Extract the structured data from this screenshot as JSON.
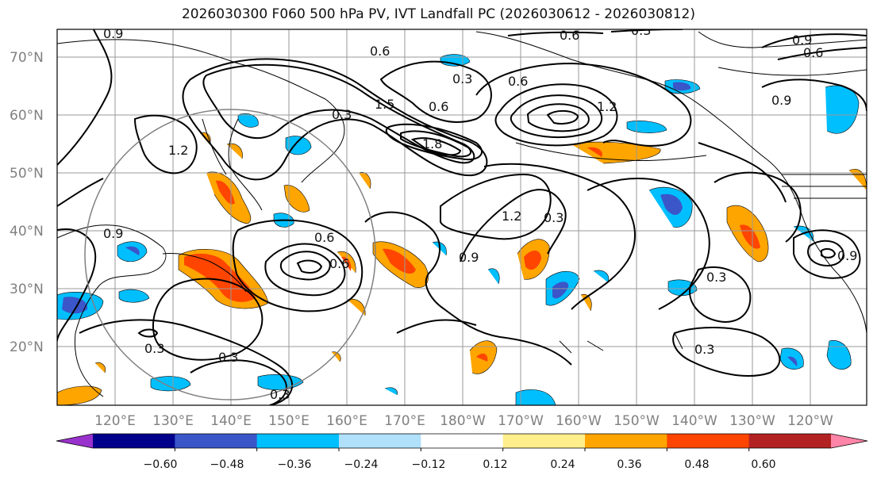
{
  "title": "2026030300 F060 500 hPa PV, IVT Landfall PC (2026030612 - 2026030812)",
  "lat_labels": [
    "70°N",
    "60°N",
    "50°N",
    "40°N",
    "30°N",
    "20°N"
  ],
  "lon_labels": [
    "120°E",
    "130°E",
    "140°E",
    "150°E",
    "160°E",
    "170°E",
    "180°W",
    "170°W",
    "160°W",
    "150°W",
    "140°W",
    "130°W",
    "120°W"
  ],
  "contour_labels": [
    "0.6",
    "0.3",
    "0.9",
    "0.6",
    "0.6",
    "0.9",
    "0.3",
    "1.5",
    "0.6",
    "1.2",
    "1.8",
    "0.6",
    "0.9",
    "1.2",
    "0.3",
    "0.9",
    "0.6",
    "0.6",
    "0.3",
    "0.3",
    "0.3",
    "0.3",
    "0.9",
    "0.3",
    "1.2",
    "0.3",
    "0.9"
  ],
  "colorbar": {
    "colors": [
      "#9932cc",
      "#00008b",
      "#3a56c8",
      "#00bfff",
      "#b0e0fa",
      "#ffffff",
      "#ffee8c",
      "#ffa500",
      "#ff4500",
      "#b22222",
      "#ff85a8"
    ],
    "tick_labels": [
      "−0.60",
      "−0.48",
      "−0.36",
      "−0.24",
      "−0.12",
      "0.12",
      "0.24",
      "0.36",
      "0.48",
      "0.60"
    ]
  }
}
